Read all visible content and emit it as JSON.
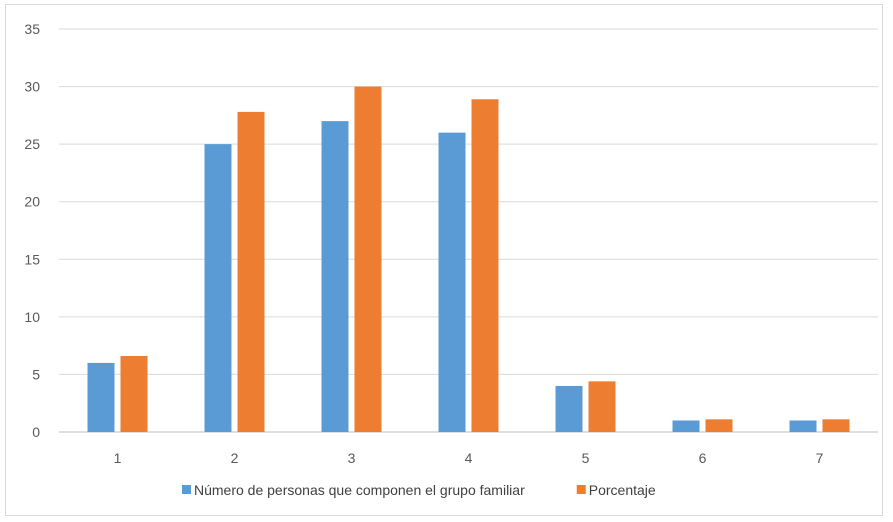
{
  "chart_data": {
    "type": "bar",
    "categories": [
      "1",
      "2",
      "3",
      "4",
      "5",
      "6",
      "7"
    ],
    "series": [
      {
        "name": "Número de personas que componen el grupo familiar",
        "color": "#5b9bd5",
        "values": [
          6,
          25,
          27,
          26,
          4,
          1,
          1
        ]
      },
      {
        "name": "Porcentaje",
        "color": "#ed7d31",
        "values": [
          6.6,
          27.8,
          30,
          28.9,
          4.4,
          1.1,
          1.1
        ]
      }
    ],
    "title": "",
    "xlabel": "",
    "ylabel": "",
    "ylim": [
      0,
      35
    ],
    "yticks": [
      "0",
      "5",
      "10",
      "15",
      "20",
      "25",
      "30",
      "35"
    ],
    "grid": true,
    "legend_position": "bottom"
  }
}
